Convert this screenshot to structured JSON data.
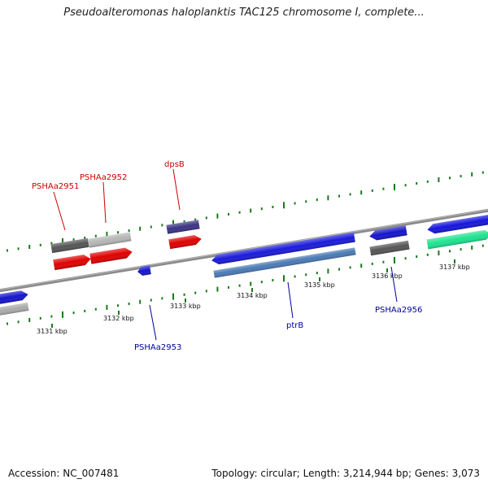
{
  "header": {
    "title": "Pseudoalteromonas haloplanktis TAC125 chromosome I, complete..."
  },
  "footer": {
    "accession": "Accession: NC_007481",
    "stats": "Topology: circular; Length: 3,214,944 bp; Genes: 3,073"
  },
  "colors": {
    "background": "#ffffff",
    "backbone": "#8a8a8a",
    "label_top": "#cc0000",
    "label_bottom": "#000099",
    "gc_ticks": "#1a7a1a"
  },
  "scale": {
    "ticks": [
      "3131 kbp",
      "3132 kbp",
      "3133 kbp",
      "3134 kbp",
      "3135 kbp",
      "3136 kbp",
      "3137 kbp"
    ]
  },
  "genes": [
    {
      "name": "PSHAa2951",
      "strand": "top",
      "color": "#cc0000"
    },
    {
      "name": "PSHAa2952",
      "strand": "top",
      "color": "#cc0000"
    },
    {
      "name": "dpsB",
      "strand": "top",
      "color": "#cc0000"
    },
    {
      "name": "PSHAa2953",
      "strand": "bottom",
      "color": "#000099"
    },
    {
      "name": "ptrB",
      "strand": "bottom",
      "color": "#000099"
    },
    {
      "name": "PSHAa2956",
      "strand": "bottom",
      "color": "#000099"
    }
  ],
  "features": {
    "top_gray_1": {
      "color": "#555555"
    },
    "top_gray_2": {
      "color": "#b5b5b5"
    },
    "top_purple": {
      "color": "#3b3384"
    },
    "top_blue_small": {
      "color": "#1515cc"
    },
    "top_gray_3": {
      "color": "#555555"
    },
    "top_blue_right": {
      "color": "#1515dd"
    },
    "red_1": {
      "color": "#e00000"
    },
    "red_2": {
      "color": "#e00000"
    },
    "red_3": {
      "color": "#e00000"
    },
    "mid_blue_small": {
      "color": "#1515cc"
    },
    "ptrB_main": {
      "color": "#1a1adb"
    },
    "ptrB_light": {
      "color": "#4a7ab5"
    },
    "green_right": {
      "color": "#1ee38f"
    },
    "left_blue": {
      "color": "#1515cc"
    },
    "left_gray": {
      "color": "#aaaaaa"
    }
  }
}
